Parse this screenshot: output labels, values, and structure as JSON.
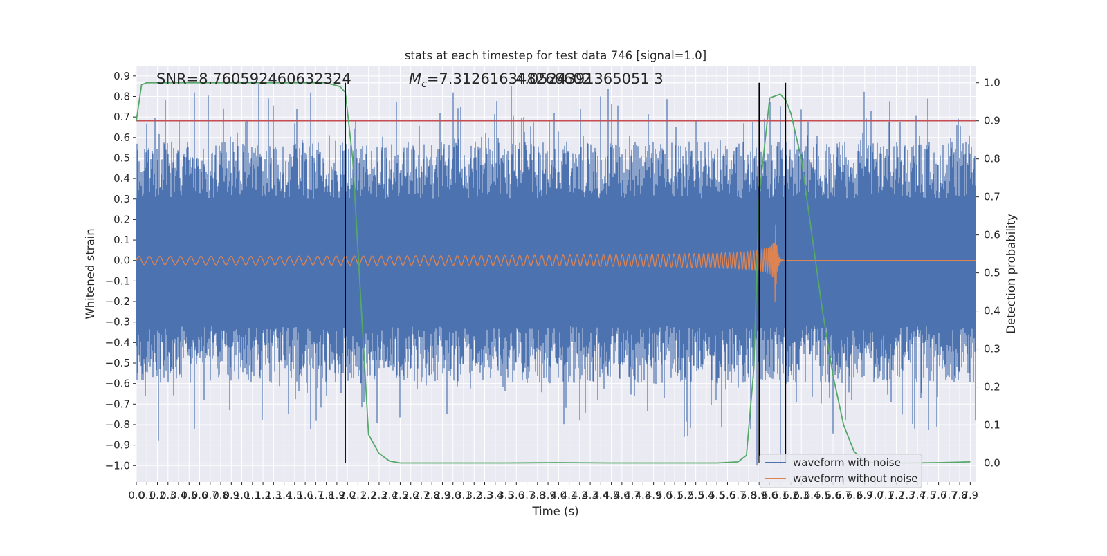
{
  "chart_data": {
    "type": "line",
    "title": "stats at each timestep for test data 746 [signal=1.0]",
    "xlabel": "Time (s)",
    "ylabel_left": "Whitened strain",
    "ylabel_right": "Detection probability",
    "xlim": [
      0.0,
      7.95
    ],
    "ylim_left": [
      -1.08,
      0.95
    ],
    "ylim_right": [
      -0.05,
      1.045
    ],
    "left_ticks": [
      -1.0,
      -0.9,
      -0.8,
      -0.7,
      -0.6,
      -0.5,
      -0.4,
      -0.3,
      -0.2,
      -0.1,
      0.0,
      0.1,
      0.2,
      0.3,
      0.4,
      0.5,
      0.6,
      0.7,
      0.8,
      0.9
    ],
    "left_tick_labels": [
      "−1.0",
      "−0.9",
      "−0.8",
      "−0.7",
      "−0.6",
      "−0.5",
      "−0.4",
      "−0.3",
      "−0.2",
      "−0.1",
      "0.0",
      "0.1",
      "0.2",
      "0.3",
      "0.4",
      "0.5",
      "0.6",
      "0.7",
      "0.8",
      "0.9"
    ],
    "right_ticks": [
      0.0,
      0.1,
      0.2,
      0.3,
      0.4,
      0.5,
      0.6,
      0.7,
      0.8,
      0.9,
      1.0
    ],
    "right_tick_labels": [
      "0.0",
      "0.1",
      "0.2",
      "0.3",
      "0.4",
      "0.5",
      "0.6",
      "0.7",
      "0.8",
      "0.9",
      "1.0"
    ],
    "x_tick_step": 0.1,
    "x_tick_count": 80,
    "annotations": {
      "snr": "SNR=8.760592460632324",
      "mc_symbol": "M",
      "mc_subscript": "c",
      "mc_value": "=7.312616348266602",
      "overlap_value": "4.0524391365051 3"
    },
    "threshold": {
      "value": 0.9,
      "axis": "right",
      "color": "#c44e52"
    },
    "vertical_markers": [
      1.98,
      5.9,
      6.15
    ],
    "series": [
      {
        "name": "waveform with noise",
        "color": "#4c72b0",
        "axis": "left",
        "description": "whitened noisy strain, approx. 3000 samples between -1.0 and 0.9",
        "envelope_min": -1.0,
        "envelope_max": 0.9,
        "peaks": [
          [
            0.55,
            0.82
          ],
          [
            1.25,
            0.79
          ],
          [
            1.65,
            0.82
          ],
          [
            3.0,
            0.82
          ],
          [
            3.55,
            0.85
          ],
          [
            4.4,
            0.8
          ],
          [
            6.1,
            0.75
          ],
          [
            6.1,
            -1.0
          ],
          [
            5.88,
            -1.0
          ],
          [
            0.55,
            -0.82
          ],
          [
            7.58,
            -0.81
          ]
        ]
      },
      {
        "name": "waveform without noise",
        "color": "#dd8452",
        "axis": "left",
        "description": "chirp signal growing in amplitude, merger at approx. 6.05 s then ringdown",
        "amplitude_start": 0.02,
        "amplitude_at_merger": 0.25,
        "merger_time": 6.05
      },
      {
        "name": "detection probability",
        "color": "#55a868",
        "axis": "right",
        "x": [
          0.0,
          0.05,
          0.1,
          0.2,
          0.5,
          1.0,
          1.5,
          1.8,
          1.93,
          1.98,
          2.05,
          2.2,
          2.3,
          2.4,
          2.5,
          2.6,
          3.0,
          3.5,
          4.0,
          4.5,
          5.0,
          5.5,
          5.7,
          5.78,
          5.85,
          5.9,
          6.0,
          6.1,
          6.15,
          6.2,
          6.3,
          6.4,
          6.5,
          6.6,
          6.7,
          6.8,
          6.9,
          7.0,
          7.3,
          7.6,
          7.9
        ],
        "y": [
          0.9,
          0.995,
          1.0,
          1.0,
          1.0,
          1.0,
          1.0,
          1.0,
          0.99,
          0.975,
          0.8,
          0.075,
          0.025,
          0.005,
          0.0,
          0.0,
          0.0,
          0.0,
          0.001,
          0.0,
          0.0,
          0.0,
          0.003,
          0.02,
          0.25,
          0.7,
          0.96,
          0.97,
          0.955,
          0.92,
          0.8,
          0.6,
          0.4,
          0.23,
          0.1,
          0.03,
          0.005,
          0.0,
          0.0,
          0.001,
          0.003
        ]
      }
    ],
    "legend": {
      "position": "lower-right",
      "entries": [
        {
          "label": "waveform with noise",
          "color": "#4c72b0"
        },
        {
          "label": "waveform without noise",
          "color": "#dd8452"
        }
      ]
    },
    "colors": {
      "background": "#eaeaf2",
      "grid": "#ffffff",
      "marker": "#000000"
    }
  }
}
